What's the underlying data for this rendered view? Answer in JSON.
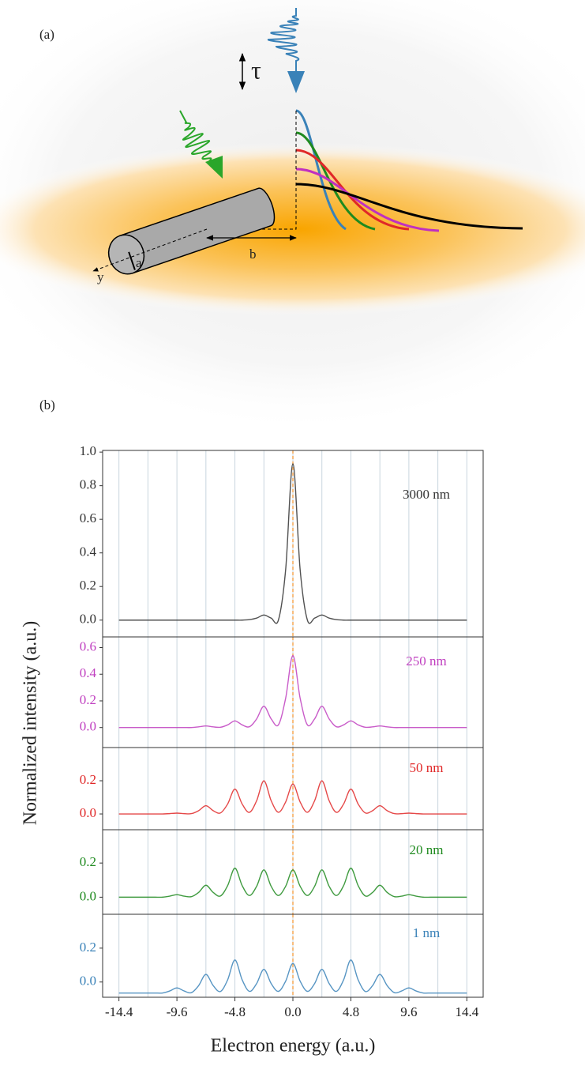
{
  "figure": {
    "panel_a": "(a)",
    "panel_b": "(b)",
    "ylabel": "Normalized intensity (a.u.)"
  },
  "diagram": {
    "tau": "τ",
    "a": "a",
    "b": "b",
    "y": "y"
  },
  "xgrid": [
    -14.4,
    -12,
    -9.6,
    -7.2,
    -4.8,
    -2.4,
    0,
    2.4,
    4.8,
    7.2,
    9.6,
    12,
    14.4
  ],
  "chart_data": [
    {
      "type": "line",
      "xlim": [
        -15.75,
        15.75
      ],
      "ylim": [
        -0.1,
        1.01
      ],
      "yticks": [
        {
          "value": 0,
          "label": "0.0"
        },
        0.2,
        0.4,
        0.6,
        0.8,
        {
          "value": 1,
          "label": "1.0"
        }
      ],
      "vline": {
        "value": 0,
        "color": "#f39c3c"
      },
      "x": [
        -14.4,
        -13.8,
        -13.2,
        -12.6,
        -12,
        -11.4,
        -10.8,
        -10.2,
        -9.6,
        -9,
        -8.4,
        -7.8,
        -7.2,
        -6.6,
        -6,
        -5.4,
        -4.8,
        -4.2,
        -3.6,
        -3,
        -2.4,
        -1.8,
        -1.2,
        -0.6,
        0,
        0.6,
        1.2,
        1.8,
        2.4,
        3,
        3.6,
        4.2,
        4.8,
        5.4,
        6,
        6.6,
        7.2,
        7.8,
        8.4,
        9,
        9.6,
        10.2,
        10.8,
        11.4,
        12,
        12.6,
        13.2,
        13.8,
        14.4
      ],
      "series": [
        {
          "name": "3000 nm",
          "color": "#333333",
          "values": [
            0,
            0,
            0,
            0,
            0,
            0,
            0,
            0,
            0,
            0,
            0,
            0,
            0,
            0,
            0,
            0,
            0,
            0,
            0.003,
            0.012,
            0.03,
            0.012,
            0,
            0.3,
            0.93,
            0.3,
            0,
            0.012,
            0.03,
            0.012,
            0.003,
            0,
            0,
            0,
            0,
            0,
            0,
            0,
            0,
            0,
            0,
            0,
            0,
            0,
            0,
            0,
            0,
            0,
            0
          ]
        }
      ]
    },
    {
      "type": "line",
      "xlim": [
        -15.75,
        15.75
      ],
      "ylim": [
        -0.15,
        0.68
      ],
      "yticks": [
        {
          "value": 0,
          "label": "0.0"
        },
        0.2,
        0.4,
        0.6
      ],
      "vline": {
        "value": 0,
        "color": "#f39c3c"
      },
      "x": [
        -14.4,
        -13.8,
        -13.2,
        -12.6,
        -12,
        -11.4,
        -10.8,
        -10.2,
        -9.6,
        -9,
        -8.4,
        -7.8,
        -7.2,
        -6.6,
        -6,
        -5.4,
        -4.8,
        -4.2,
        -3.6,
        -3,
        -2.4,
        -1.8,
        -1.2,
        -0.6,
        0,
        0.6,
        1.2,
        1.8,
        2.4,
        3,
        3.6,
        4.2,
        4.8,
        5.4,
        6,
        6.6,
        7.2,
        7.8,
        8.4,
        9,
        9.6,
        10.2,
        10.8,
        11.4,
        12,
        12.6,
        13.2,
        13.8,
        14.4
      ],
      "series": [
        {
          "name": "250 nm",
          "color": "#c040c0",
          "values": [
            0,
            0,
            0,
            0,
            0,
            0,
            0,
            0,
            0,
            0,
            0,
            0.005,
            0.012,
            0.005,
            0.002,
            0.02,
            0.05,
            0.02,
            0.006,
            0.065,
            0.16,
            0.065,
            0.02,
            0.22,
            0.54,
            0.22,
            0.02,
            0.065,
            0.16,
            0.065,
            0.006,
            0.02,
            0.05,
            0.02,
            0.002,
            0.005,
            0.012,
            0.005,
            0,
            0,
            0,
            0,
            0,
            0,
            0,
            0,
            0,
            0,
            0
          ]
        }
      ]
    },
    {
      "type": "line",
      "xlim": [
        -15.75,
        15.75
      ],
      "ylim": [
        -0.095,
        0.4
      ],
      "yticks": [
        {
          "value": 0,
          "label": "0.0"
        },
        0.2
      ],
      "vline": {
        "value": 0,
        "color": "#f39c3c"
      },
      "x": [
        -14.4,
        -13.8,
        -13.2,
        -12.6,
        -12,
        -11.4,
        -10.8,
        -10.2,
        -9.6,
        -9,
        -8.4,
        -7.8,
        -7.2,
        -6.6,
        -6,
        -5.4,
        -4.8,
        -4.2,
        -3.6,
        -3,
        -2.4,
        -1.8,
        -1.2,
        -0.6,
        0,
        0.6,
        1.2,
        1.8,
        2.4,
        3,
        3.6,
        4.2,
        4.8,
        5.4,
        6,
        6.6,
        7.2,
        7.8,
        8.4,
        9,
        9.6,
        10.2,
        10.8,
        11.4,
        12,
        12.6,
        13.2,
        13.8,
        14.4
      ],
      "series": [
        {
          "name": "50 nm",
          "color": "#e02828",
          "values": [
            0,
            0,
            0,
            0,
            0,
            0,
            0,
            0.002,
            0.005,
            0.002,
            0.002,
            0.02,
            0.05,
            0.02,
            0.006,
            0.06,
            0.15,
            0.06,
            0.01,
            0.08,
            0.2,
            0.08,
            0.01,
            0.072,
            0.18,
            0.072,
            0.01,
            0.08,
            0.2,
            0.08,
            0.01,
            0.06,
            0.15,
            0.06,
            0.006,
            0.02,
            0.05,
            0.02,
            0.002,
            0.002,
            0.005,
            0.002,
            0,
            0,
            0,
            0,
            0,
            0,
            0
          ]
        }
      ]
    },
    {
      "type": "line",
      "xlim": [
        -15.75,
        15.75
      ],
      "ylim": [
        -0.1,
        0.395
      ],
      "yticks": [
        {
          "value": 0,
          "label": "0.0"
        },
        0.2
      ],
      "vline": {
        "value": 0,
        "color": "#f39c3c"
      },
      "x": [
        -14.4,
        -13.8,
        -13.2,
        -12.6,
        -12,
        -11.4,
        -10.8,
        -10.2,
        -9.6,
        -9,
        -8.4,
        -7.8,
        -7.2,
        -6.6,
        -6,
        -5.4,
        -4.8,
        -4.2,
        -3.6,
        -3,
        -2.4,
        -1.8,
        -1.2,
        -0.6,
        0,
        0.6,
        1.2,
        1.8,
        2.4,
        3,
        3.6,
        4.2,
        4.8,
        5.4,
        6,
        6.6,
        7.2,
        7.8,
        8.4,
        9,
        9.6,
        10.2,
        10.8,
        11.4,
        12,
        12.6,
        13.2,
        13.8,
        14.4
      ],
      "series": [
        {
          "name": "20 nm",
          "color": "#1f8a1f",
          "values": [
            0,
            0,
            0,
            0,
            0,
            0,
            0,
            0.006,
            0.015,
            0.006,
            0.003,
            0.028,
            0.07,
            0.028,
            0.007,
            0.068,
            0.17,
            0.068,
            0.01,
            0.064,
            0.16,
            0.064,
            0.01,
            0.064,
            0.16,
            0.064,
            0.01,
            0.064,
            0.16,
            0.064,
            0.01,
            0.068,
            0.17,
            0.068,
            0.007,
            0.028,
            0.07,
            0.028,
            0.003,
            0.006,
            0.015,
            0.006,
            0,
            0,
            0,
            0,
            0,
            0,
            0
          ]
        }
      ]
    },
    {
      "type": "line",
      "xlim": [
        -15.75,
        15.75
      ],
      "ylim": [
        -0.09,
        0.4
      ],
      "yticks": [
        {
          "value": 0,
          "label": "0.0"
        },
        0.2
      ],
      "vline": {
        "value": 0,
        "color": "#f39c3c"
      },
      "xticks": [
        -14.4,
        -9.6,
        -4.8,
        {
          "value": 0,
          "label": "0.0"
        },
        4.8,
        9.6,
        14.4
      ],
      "xlabel": "Electron energy (a.u.)",
      "x": [
        -14.4,
        -13.8,
        -13.2,
        -12.6,
        -12,
        -11.4,
        -10.8,
        -10.2,
        -9.6,
        -9,
        -8.4,
        -7.8,
        -7.2,
        -6.6,
        -6,
        -5.4,
        -4.8,
        -4.2,
        -3.6,
        -3,
        -2.4,
        -1.8,
        -1.2,
        -0.6,
        0,
        0.6,
        1.2,
        1.8,
        2.4,
        3,
        3.6,
        4.2,
        4.8,
        5.4,
        6,
        6.6,
        7.2,
        7.8,
        8.4,
        9,
        9.6,
        10.2,
        10.8,
        11.4,
        12,
        12.6,
        13.2,
        13.8,
        14.4
      ],
      "series": [
        {
          "name": "1 nm",
          "color": "#3a82b8",
          "values": [
            -0.065,
            -0.065,
            -0.065,
            -0.065,
            -0.065,
            -0.065,
            -0.065,
            -0.053,
            -0.035,
            -0.053,
            -0.063,
            -0.021,
            0.045,
            -0.021,
            -0.056,
            0.013,
            0.13,
            0.013,
            -0.055,
            -0.009,
            0.075,
            -0.009,
            -0.055,
            0.005,
            0.11,
            0.005,
            -0.055,
            -0.009,
            0.075,
            -0.009,
            -0.055,
            0.013,
            0.13,
            0.013,
            -0.056,
            -0.021,
            0.045,
            -0.021,
            -0.063,
            -0.053,
            -0.035,
            -0.053,
            -0.065,
            -0.065,
            -0.065,
            -0.065,
            -0.065,
            -0.065,
            -0.065
          ]
        }
      ]
    }
  ]
}
